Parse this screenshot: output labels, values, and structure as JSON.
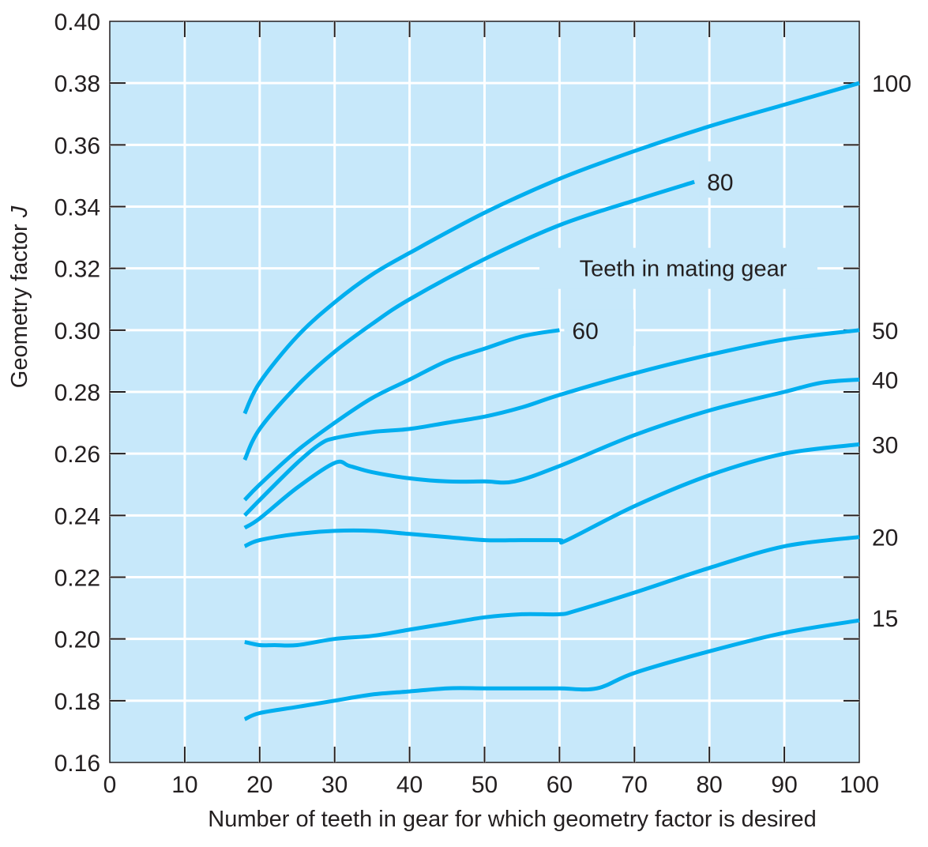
{
  "colors": {
    "plot_background": "#c7e8fa",
    "grid": "#ffffff",
    "series": "#00aeef",
    "text": "#231f20"
  },
  "chart_data": {
    "type": "line",
    "title": "",
    "xlabel": "Number of teeth in gear for which geometry factor is desired",
    "ylabel_text": "Geometry factor ",
    "ylabel_symbol": "J",
    "xlim": [
      0,
      100
    ],
    "ylim": [
      0.16,
      0.4
    ],
    "xticks": [
      "0",
      "10",
      "20",
      "30",
      "40",
      "50",
      "60",
      "70",
      "80",
      "90",
      "100"
    ],
    "yticks": [
      "0.16",
      "0.18",
      "0.20",
      "0.22",
      "0.24",
      "0.26",
      "0.28",
      "0.30",
      "0.32",
      "0.34",
      "0.36",
      "0.38",
      "0.40"
    ],
    "grid": true,
    "annotation": "Teeth in mating gear",
    "series": [
      {
        "name": "100",
        "x": [
          18,
          20,
          25,
          30,
          35,
          40,
          50,
          60,
          70,
          80,
          90,
          100
        ],
        "y": [
          0.273,
          0.283,
          0.298,
          0.309,
          0.318,
          0.325,
          0.338,
          0.349,
          0.358,
          0.366,
          0.373,
          0.38
        ]
      },
      {
        "name": "80",
        "x": [
          18,
          20,
          25,
          30,
          35,
          40,
          50,
          60,
          70,
          78
        ],
        "y": [
          0.258,
          0.268,
          0.282,
          0.293,
          0.302,
          0.31,
          0.323,
          0.334,
          0.342,
          0.348
        ]
      },
      {
        "name": "60",
        "x": [
          18,
          20,
          25,
          30,
          35,
          40,
          45,
          50,
          55,
          60
        ],
        "y": [
          0.245,
          0.25,
          0.261,
          0.27,
          0.278,
          0.284,
          0.29,
          0.294,
          0.298,
          0.3
        ]
      },
      {
        "name": "50",
        "x": [
          18,
          20,
          25,
          28,
          30,
          35,
          40,
          45,
          50,
          55,
          60,
          70,
          80,
          90,
          100
        ],
        "y": [
          0.24,
          0.245,
          0.257,
          0.263,
          0.265,
          0.267,
          0.268,
          0.27,
          0.272,
          0.275,
          0.279,
          0.286,
          0.292,
          0.297,
          0.3
        ]
      },
      {
        "name": "40",
        "x": [
          18,
          20,
          25,
          30,
          32,
          35,
          40,
          45,
          50,
          54,
          60,
          70,
          80,
          90,
          95,
          100
        ],
        "y": [
          0.236,
          0.239,
          0.249,
          0.257,
          0.256,
          0.254,
          0.252,
          0.251,
          0.251,
          0.251,
          0.256,
          0.266,
          0.274,
          0.28,
          0.283,
          0.284
        ]
      },
      {
        "name": "30",
        "x": [
          18,
          20,
          25,
          30,
          35,
          40,
          45,
          50,
          55,
          60,
          61,
          70,
          80,
          90,
          100
        ],
        "y": [
          0.23,
          0.232,
          0.234,
          0.235,
          0.235,
          0.234,
          0.233,
          0.232,
          0.232,
          0.232,
          0.232,
          0.243,
          0.253,
          0.26,
          0.263
        ]
      },
      {
        "name": "20",
        "x": [
          18,
          20,
          22,
          25,
          30,
          35,
          40,
          45,
          50,
          55,
          60,
          62,
          70,
          80,
          90,
          100
        ],
        "y": [
          0.199,
          0.198,
          0.198,
          0.198,
          0.2,
          0.201,
          0.203,
          0.205,
          0.207,
          0.208,
          0.208,
          0.209,
          0.215,
          0.223,
          0.23,
          0.233
        ]
      },
      {
        "name": "15",
        "x": [
          18,
          20,
          25,
          30,
          35,
          40,
          45,
          50,
          55,
          60,
          65,
          70,
          80,
          90,
          100
        ],
        "y": [
          0.174,
          0.176,
          0.178,
          0.18,
          0.182,
          0.183,
          0.184,
          0.184,
          0.184,
          0.184,
          0.184,
          0.189,
          0.196,
          0.202,
          0.206
        ]
      }
    ]
  }
}
